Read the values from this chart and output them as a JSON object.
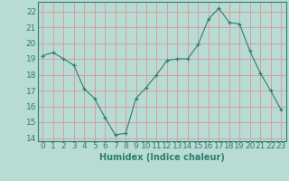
{
  "x": [
    0,
    1,
    2,
    3,
    4,
    5,
    6,
    7,
    8,
    9,
    10,
    11,
    12,
    13,
    14,
    15,
    16,
    17,
    18,
    19,
    20,
    21,
    22,
    23
  ],
  "y": [
    19.2,
    19.4,
    19.0,
    18.6,
    17.1,
    16.5,
    15.3,
    14.2,
    14.3,
    16.5,
    17.2,
    18.0,
    18.9,
    19.0,
    19.0,
    19.9,
    21.5,
    22.2,
    21.3,
    21.2,
    19.5,
    18.1,
    17.0,
    15.8
  ],
  "xlabel": "Humidex (Indice chaleur)",
  "xlim": [
    -0.5,
    23.5
  ],
  "ylim": [
    13.8,
    22.6
  ],
  "yticks": [
    14,
    15,
    16,
    17,
    18,
    19,
    20,
    21,
    22
  ],
  "xticks": [
    0,
    1,
    2,
    3,
    4,
    5,
    6,
    7,
    8,
    9,
    10,
    11,
    12,
    13,
    14,
    15,
    16,
    17,
    18,
    19,
    20,
    21,
    22,
    23
  ],
  "line_color": "#2e7d6e",
  "marker": "+",
  "bg_color": "#b8dcd4",
  "grid_color": "#d4a0a0",
  "tick_color": "#2e7d6e",
  "label_color": "#2e7d6e",
  "font_size": 6.5,
  "xlabel_font_size": 7.0
}
